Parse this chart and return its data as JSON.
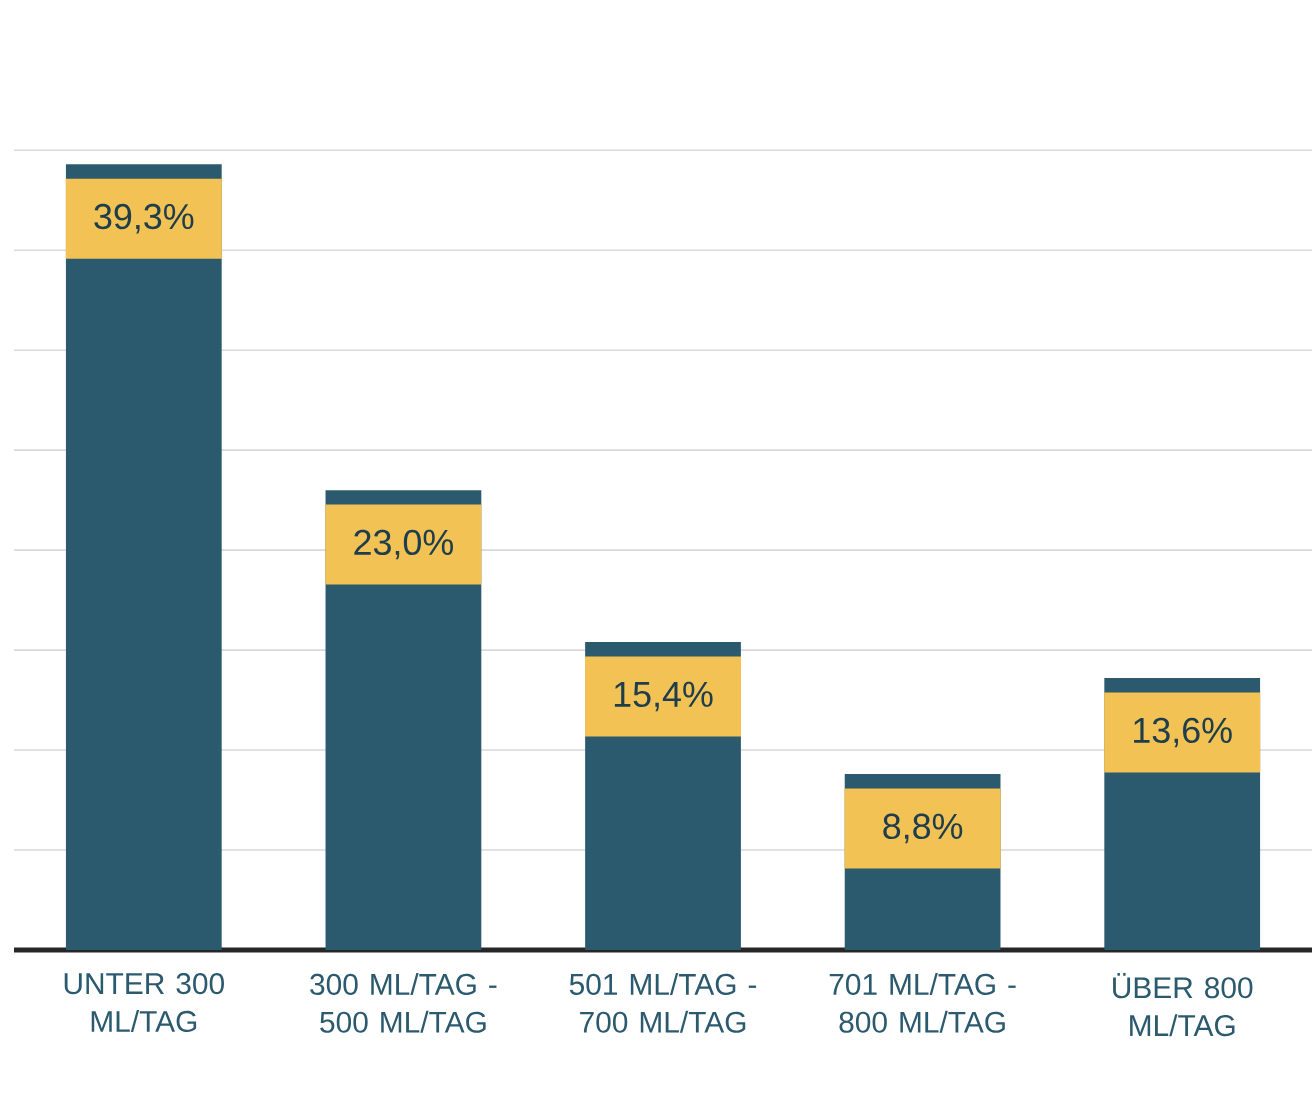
{
  "chart_data": {
    "type": "bar",
    "categories": [
      "UNTER 300 ML/TAG",
      "300 ML/TAG - 500 ML/TAG",
      "501 ML/TAG - 700 ML/TAG",
      "701 ML/TAG - 800 ML/TAG",
      "ÜBER 800 ML/TAG"
    ],
    "values": [
      39.3,
      23.0,
      15.4,
      8.8,
      13.6
    ],
    "value_labels": [
      "39,3%",
      "23,0%",
      "15,4%",
      "8,8%",
      "13,6%"
    ],
    "color": "#2b596d",
    "grid": "y",
    "tick_labels": "x"
  }
}
